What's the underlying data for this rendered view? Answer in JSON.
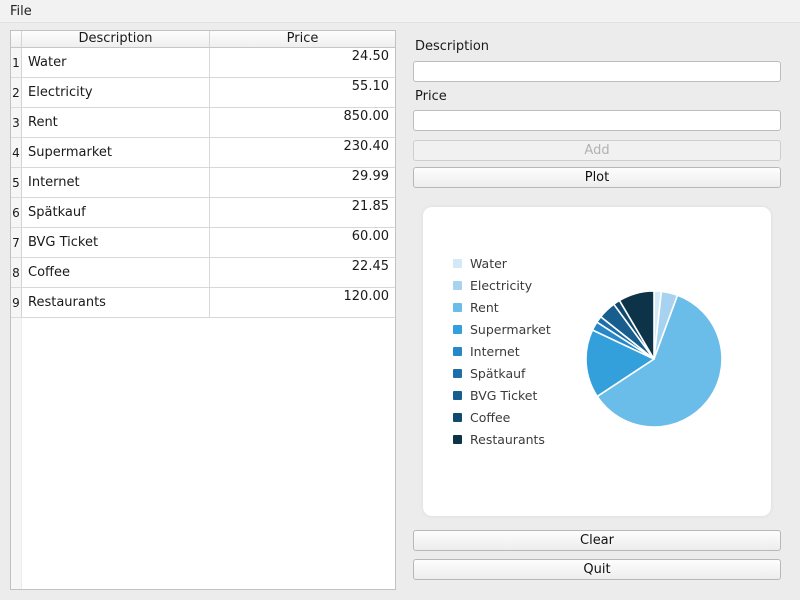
{
  "menubar": {
    "items": [
      {
        "label": "File"
      }
    ]
  },
  "table": {
    "columns": {
      "description": "Description",
      "price": "Price"
    },
    "rows": [
      {
        "num": "1",
        "description": "Water",
        "price": "24.50"
      },
      {
        "num": "2",
        "description": "Electricity",
        "price": "55.10"
      },
      {
        "num": "3",
        "description": "Rent",
        "price": "850.00"
      },
      {
        "num": "4",
        "description": "Supermarket",
        "price": "230.40"
      },
      {
        "num": "5",
        "description": "Internet",
        "price": "29.99"
      },
      {
        "num": "6",
        "description": "Spätkauf",
        "price": "21.85"
      },
      {
        "num": "7",
        "description": "BVG Ticket",
        "price": "60.00"
      },
      {
        "num": "8",
        "description": "Coffee",
        "price": "22.45"
      },
      {
        "num": "9",
        "description": "Restaurants",
        "price": "120.00"
      }
    ]
  },
  "form": {
    "description_label": "Description",
    "description_value": "",
    "price_label": "Price",
    "price_value": "",
    "add_label": "Add",
    "add_enabled": false,
    "plot_label": "Plot"
  },
  "actions": {
    "clear_label": "Clear",
    "quit_label": "Quit"
  },
  "chart_data": {
    "type": "pie",
    "title": "",
    "labels": [
      "Water",
      "Electricity",
      "Rent",
      "Supermarket",
      "Internet",
      "Spätkauf",
      "BVG Ticket",
      "Coffee",
      "Restaurants"
    ],
    "values": [
      24.5,
      55.1,
      850.0,
      230.4,
      29.99,
      21.85,
      60.0,
      22.45,
      120.0
    ],
    "colors": [
      "#d3e9f7",
      "#a7d3f0",
      "#6bbde9",
      "#33a0db",
      "#2688c8",
      "#1d6fa9",
      "#175d8d",
      "#104a6e",
      "#0d3349"
    ],
    "start_angle_deg": 90,
    "direction": "clockwise",
    "legend_position": "left",
    "wedge_edge_color": "#ffffff",
    "legend_text_color": "#3b3b3b"
  }
}
